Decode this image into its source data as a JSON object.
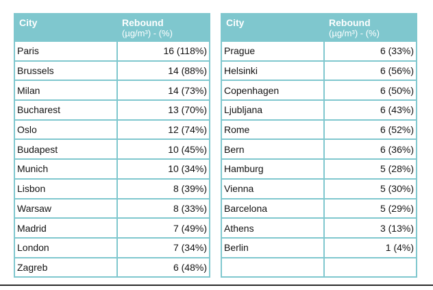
{
  "header": {
    "city": "City",
    "rebound": "Rebound",
    "unit": "(µg/m³) - (%)"
  },
  "left_table": [
    {
      "city": "Paris",
      "value": "16 (118%)"
    },
    {
      "city": "Brussels",
      "value": "14 (88%)"
    },
    {
      "city": "Milan",
      "value": "14 (73%)"
    },
    {
      "city": "Bucharest",
      "value": "13 (70%)"
    },
    {
      "city": "Oslo",
      "value": "12 (74%)"
    },
    {
      "city": "Budapest",
      "value": "10 (45%)"
    },
    {
      "city": "Munich",
      "value": "10 (34%)"
    },
    {
      "city": "Lisbon",
      "value": "8 (39%)"
    },
    {
      "city": "Warsaw",
      "value": "8 (33%)"
    },
    {
      "city": "Madrid",
      "value": "7 (49%)"
    },
    {
      "city": "London",
      "value": "7 (34%)"
    },
    {
      "city": "Zagreb",
      "value": "6 (48%)"
    }
  ],
  "right_table": [
    {
      "city": "Prague",
      "value": "6 (33%)"
    },
    {
      "city": "Helsinki",
      "value": "6 (56%)"
    },
    {
      "city": "Copenhagen",
      "value": "6 (50%)"
    },
    {
      "city": "Ljubljana",
      "value": "6 (43%)"
    },
    {
      "city": "Rome",
      "value": "6 (52%)"
    },
    {
      "city": "Bern",
      "value": "6 (36%)"
    },
    {
      "city": "Hamburg",
      "value": "5 (28%)"
    },
    {
      "city": "Vienna",
      "value": "5 (30%)"
    },
    {
      "city": "Barcelona",
      "value": "5 (29%)"
    },
    {
      "city": "Athens",
      "value": "3 (13%)"
    },
    {
      "city": "Berlin",
      "value": "1 (4%)"
    },
    {
      "city": "",
      "value": ""
    }
  ],
  "colors": {
    "header_bg": "#7fc7ce",
    "header_text": "#ffffff",
    "border": "#7fc7ce",
    "body_text": "#111111"
  }
}
